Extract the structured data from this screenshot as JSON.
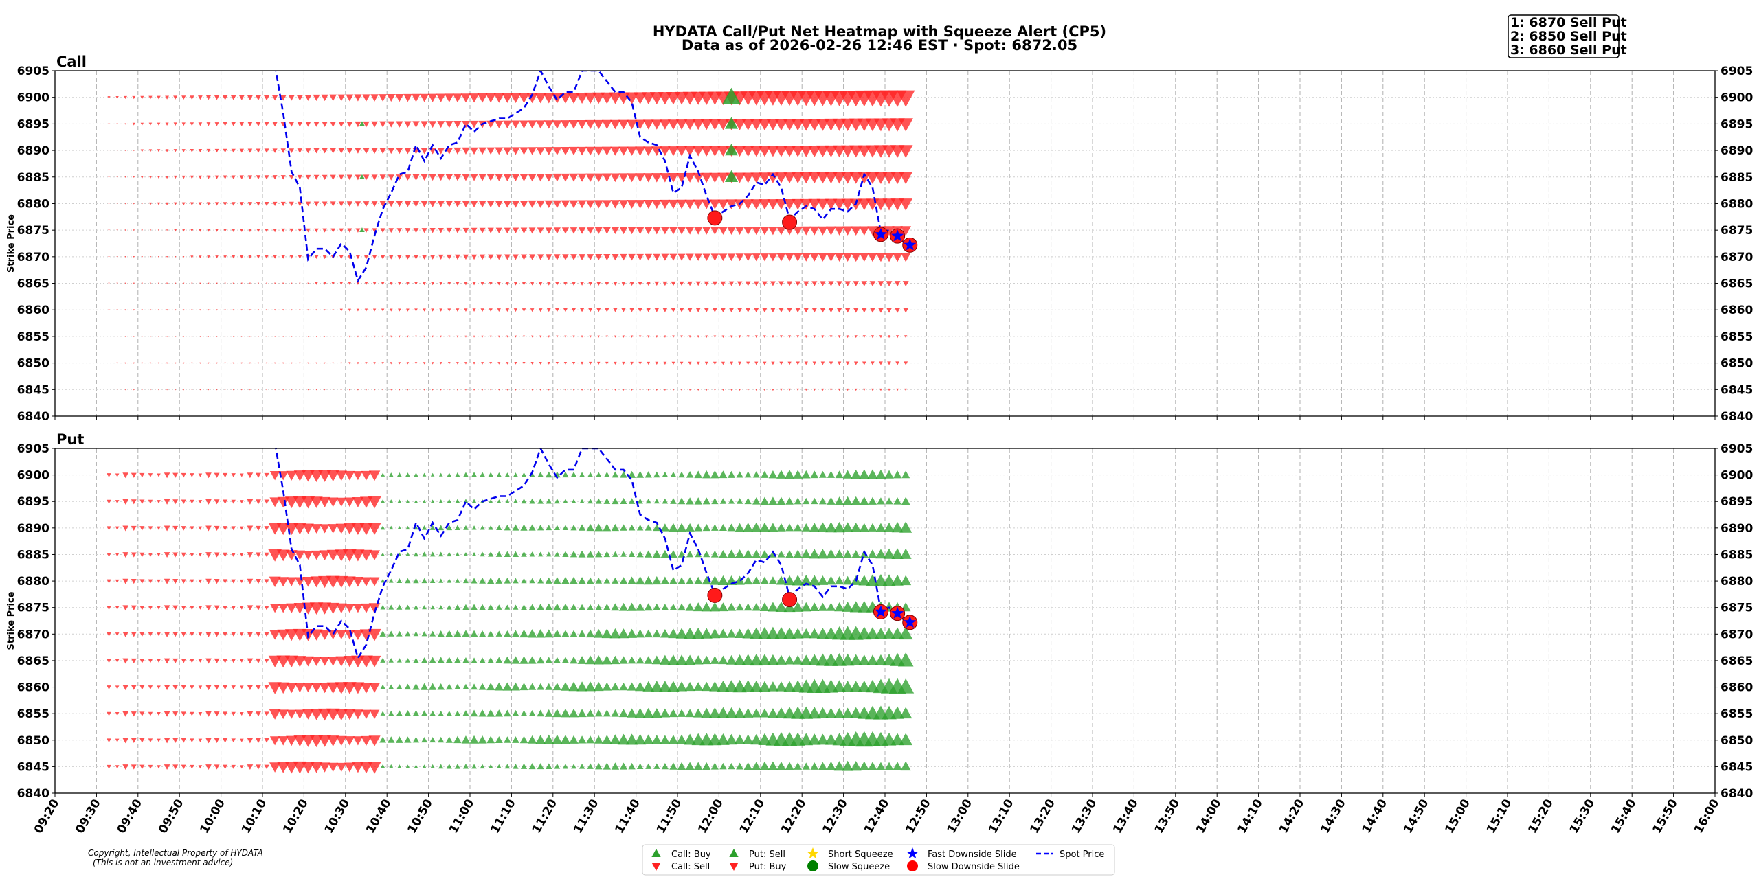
{
  "title_line1": "HYDATA Call/Put Net Heatmap with Squeeze Alert (CP5)",
  "title_line2": "Data as of 2026-02-26 12:46 EST · Spot: 6872.05",
  "alerts": [
    "1: 6870 Sell Put",
    "2: 6850 Sell Put",
    "3: 6860 Sell Put"
  ],
  "copyright": [
    "Copyright, Intellectual Property of HYDATA",
    "(This is not an investment advice)"
  ],
  "legend": [
    {
      "label": "Call: Buy",
      "marker": "triangle-up",
      "color": "#2ca02c"
    },
    {
      "label": "Call: Sell",
      "marker": "triangle-down",
      "color": "#ff2222"
    },
    {
      "label": "Put: Sell",
      "marker": "triangle-up",
      "color": "#2ca02c"
    },
    {
      "label": "Put: Buy",
      "marker": "triangle-down",
      "color": "#ff2222"
    },
    {
      "label": "Short Squeeze",
      "marker": "star",
      "color": "#ffd700"
    },
    {
      "label": "Slow Squeeze",
      "marker": "circle",
      "color": "#008000"
    },
    {
      "label": "Fast Downside Slide",
      "marker": "star",
      "color": "#0000ff"
    },
    {
      "label": "Slow Downside Slide",
      "marker": "circle",
      "color": "#ff0000"
    },
    {
      "label": "Spot Price",
      "marker": "dashed-line",
      "color": "#0000ff"
    }
  ],
  "chart_data": [
    {
      "type": "heatmap",
      "title": "Call",
      "ylabel": "Strike Price",
      "ylim": [
        6840,
        6905
      ],
      "yticks": [
        6840,
        6845,
        6850,
        6855,
        6860,
        6865,
        6870,
        6875,
        6880,
        6885,
        6890,
        6895,
        6900,
        6905
      ],
      "xlim": [
        "09:20",
        "16:00"
      ],
      "xticks": [
        "09:20",
        "09:30",
        "09:40",
        "09:50",
        "10:00",
        "10:10",
        "10:20",
        "10:30",
        "10:40",
        "10:50",
        "11:00",
        "11:10",
        "11:20",
        "11:30",
        "11:40",
        "11:50",
        "12:00",
        "12:10",
        "12:20",
        "12:30",
        "12:40",
        "12:50",
        "13:00",
        "13:10",
        "13:20",
        "13:30",
        "13:40",
        "13:50",
        "14:00",
        "14:10",
        "14:20",
        "14:30",
        "14:40",
        "14:50",
        "15:00",
        "15:10",
        "15:20",
        "15:30",
        "15:40",
        "15:50",
        "16:00"
      ],
      "grid": true,
      "strikes": [
        6845,
        6850,
        6855,
        6860,
        6865,
        6870,
        6875,
        6880,
        6885,
        6890,
        6895,
        6900
      ],
      "flow_summary": [
        {
          "strike": 6900,
          "side": "sell",
          "trend": "growing to very large by 12:45"
        },
        {
          "strike": 6895,
          "side": "sell",
          "trend": "large"
        },
        {
          "strike": 6890,
          "side": "sell",
          "trend": "large"
        },
        {
          "strike": 6885,
          "side": "sell",
          "trend": "large"
        },
        {
          "strike": 6880,
          "side": "sell",
          "trend": "large"
        },
        {
          "strike": 6875,
          "side": "sell",
          "trend": "medium"
        },
        {
          "strike": 6870,
          "side": "sell",
          "trend": "medium"
        },
        {
          "strike": 6865,
          "side": "sell",
          "trend": "small"
        },
        {
          "strike": 6860,
          "side": "sell",
          "trend": "small"
        },
        {
          "strike": 6855,
          "side": "sell",
          "trend": "tiny"
        },
        {
          "strike": 6850,
          "side": "sell",
          "trend": "tiny"
        },
        {
          "strike": 6845,
          "side": "sell",
          "trend": "tiny"
        }
      ],
      "buy_markers": [
        {
          "time": "12:03",
          "strike": 6900,
          "size": "large"
        },
        {
          "time": "12:03",
          "strike": 6895,
          "size": "medium"
        },
        {
          "time": "12:03",
          "strike": 6890,
          "size": "medium"
        },
        {
          "time": "12:03",
          "strike": 6885,
          "size": "medium"
        },
        {
          "time": "10:34",
          "strike": 6895,
          "size": "small"
        },
        {
          "time": "10:34",
          "strike": 6885,
          "size": "small"
        },
        {
          "time": "10:34",
          "strike": 6875,
          "size": "small"
        }
      ]
    },
    {
      "type": "heatmap",
      "title": "Put",
      "ylabel": "Strike Price",
      "ylim": [
        6840,
        6905
      ],
      "yticks": [
        6840,
        6845,
        6850,
        6855,
        6860,
        6865,
        6870,
        6875,
        6880,
        6885,
        6890,
        6895,
        6900,
        6905
      ],
      "xlim": [
        "09:20",
        "16:00"
      ],
      "xticks": [
        "09:20",
        "09:30",
        "09:40",
        "09:50",
        "10:00",
        "10:10",
        "10:20",
        "10:30",
        "10:40",
        "10:50",
        "11:00",
        "11:10",
        "11:20",
        "11:30",
        "11:40",
        "11:50",
        "12:00",
        "12:10",
        "12:20",
        "12:30",
        "12:40",
        "12:50",
        "13:00",
        "13:10",
        "13:20",
        "13:30",
        "13:40",
        "13:50",
        "14:00",
        "14:10",
        "14:20",
        "14:30",
        "14:40",
        "14:50",
        "15:00",
        "15:10",
        "15:20",
        "15:30",
        "15:40",
        "15:50",
        "16:00"
      ],
      "grid": true,
      "strikes": [
        6845,
        6850,
        6855,
        6860,
        6865,
        6870,
        6875,
        6880,
        6885,
        6890,
        6895,
        6900
      ],
      "flow_summary": [
        {
          "period": "09:33-10:13",
          "side": "buy",
          "strikes": "all",
          "size": "small"
        },
        {
          "period": "10:13-10:38",
          "side": "buy",
          "strikes": "all",
          "size": "large"
        },
        {
          "period": "10:40-12:45",
          "side": "sell",
          "strikes": "all",
          "size": "medium to large, largest at 6850-6860"
        }
      ]
    }
  ],
  "spot_series": {
    "name": "Spot Price",
    "points": [
      [
        "10:13",
        6906
      ],
      [
        "10:15",
        6897
      ],
      [
        "10:17",
        6886
      ],
      [
        "10:19",
        6883
      ],
      [
        "10:21",
        6869.5
      ],
      [
        "10:23",
        6871.5
      ],
      [
        "10:25",
        6871.5
      ],
      [
        "10:27",
        6870
      ],
      [
        "10:29",
        6872.5
      ],
      [
        "10:31",
        6871
      ],
      [
        "10:33",
        6865.5
      ],
      [
        "10:35",
        6868
      ],
      [
        "10:37",
        6874
      ],
      [
        "10:39",
        6879
      ],
      [
        "10:41",
        6882
      ],
      [
        "10:43",
        6885.5
      ],
      [
        "10:45",
        6886
      ],
      [
        "10:47",
        6891
      ],
      [
        "10:49",
        6888
      ],
      [
        "10:51",
        6891
      ],
      [
        "10:53",
        6888.5
      ],
      [
        "10:55",
        6891
      ],
      [
        "10:57",
        6891.5
      ],
      [
        "10:59",
        6895
      ],
      [
        "11:01",
        6893.5
      ],
      [
        "11:03",
        6895
      ],
      [
        "11:05",
        6895.5
      ],
      [
        "11:07",
        6896
      ],
      [
        "11:09",
        6896
      ],
      [
        "11:11",
        6897
      ],
      [
        "11:13",
        6898
      ],
      [
        "11:15",
        6900.5
      ],
      [
        "11:17",
        6905
      ],
      [
        "11:19",
        6902
      ],
      [
        "11:21",
        6899.5
      ],
      [
        "11:23",
        6901
      ],
      [
        "11:25",
        6901
      ],
      [
        "11:27",
        6905
      ],
      [
        "11:29",
        6905
      ],
      [
        "11:31",
        6905
      ],
      [
        "11:33",
        6903
      ],
      [
        "11:35",
        6901
      ],
      [
        "11:37",
        6901
      ],
      [
        "11:39",
        6899
      ],
      [
        "11:41",
        6892.5
      ],
      [
        "11:43",
        6891.5
      ],
      [
        "11:45",
        6891
      ],
      [
        "11:47",
        6888
      ],
      [
        "11:49",
        6882
      ],
      [
        "11:51",
        6883
      ],
      [
        "11:53",
        6889
      ],
      [
        "11:55",
        6886
      ],
      [
        "11:57",
        6881.5
      ],
      [
        "11:59",
        6877.5
      ],
      [
        "12:01",
        6878.5
      ],
      [
        "12:03",
        6879.5
      ],
      [
        "12:05",
        6880
      ],
      [
        "12:07",
        6881.5
      ],
      [
        "12:09",
        6884
      ],
      [
        "12:11",
        6883.5
      ],
      [
        "12:13",
        6885.5
      ],
      [
        "12:15",
        6883
      ],
      [
        "12:17",
        6877
      ],
      [
        "12:19",
        6878.5
      ],
      [
        "12:21",
        6879.5
      ],
      [
        "12:23",
        6879
      ],
      [
        "12:25",
        6877
      ],
      [
        "12:27",
        6879
      ],
      [
        "12:29",
        6879
      ],
      [
        "12:31",
        6878.5
      ],
      [
        "12:33",
        6880
      ],
      [
        "12:35",
        6885.5
      ],
      [
        "12:37",
        6883
      ],
      [
        "12:39",
        6874.5
      ],
      [
        "12:41",
        6875
      ],
      [
        "12:43",
        6873.5
      ],
      [
        "12:45",
        6872.5
      ],
      [
        "12:46",
        6872
      ]
    ]
  },
  "signals": [
    {
      "type": "Slow Downside Slide",
      "time": "11:59",
      "price": 6877.3
    },
    {
      "type": "Slow Downside Slide",
      "time": "12:17",
      "price": 6876.5
    },
    {
      "type": "Fast Downside Slide",
      "time": "12:39",
      "price": 6874.2
    },
    {
      "type": "Fast Downside Slide",
      "time": "12:43",
      "price": 6873.9
    },
    {
      "type": "Fast Downside Slide",
      "time": "12:46",
      "price": 6872.2
    }
  ]
}
